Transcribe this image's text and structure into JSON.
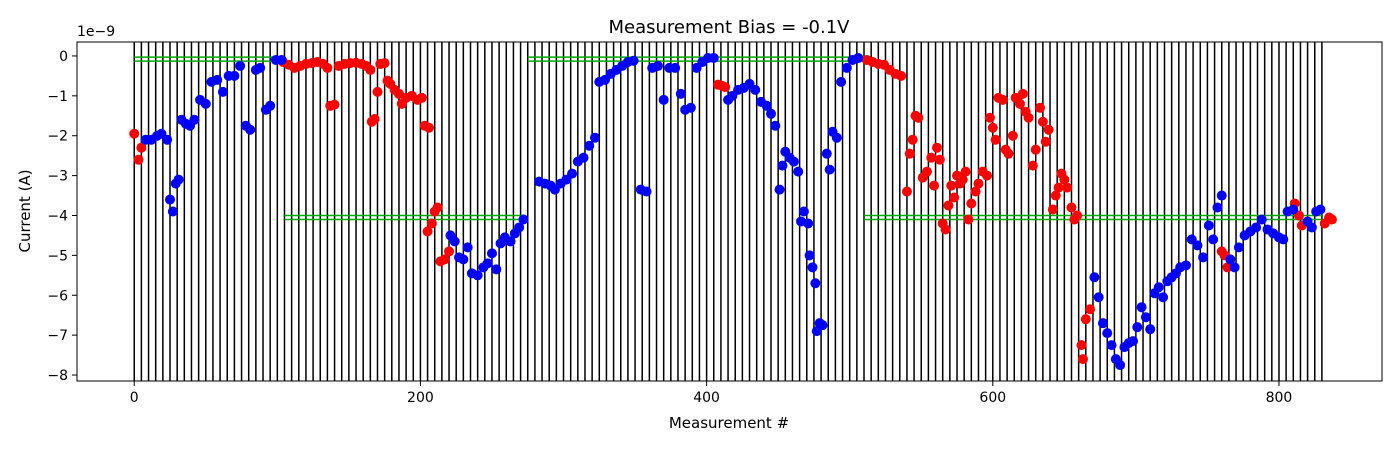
{
  "chart_data": {
    "type": "scatter",
    "title": "Measurement Bias = -0.1V",
    "xlabel": "Measurement #",
    "ylabel": "Current (A)",
    "y_offset_text": "1e−9",
    "xlim": [
      -40,
      872
    ],
    "ylim": [
      -8.15,
      0.35
    ],
    "x_ticks": [
      0,
      200,
      400,
      600,
      800
    ],
    "x_tick_labels": [
      "0",
      "200",
      "400",
      "600",
      "800"
    ],
    "y_ticks": [
      0,
      -1,
      -2,
      -3,
      -4,
      -5,
      -6,
      -7,
      -8
    ],
    "y_tick_labels": [
      "0",
      "−1",
      "−2",
      "−3",
      "−4",
      "−5",
      "−6",
      "−7",
      "−8"
    ],
    "colors": {
      "red": "#ff0000",
      "blue": "#0000ff",
      "vline": "#000000",
      "hline": "#00aa00"
    },
    "vertical_lines": {
      "start": 0,
      "end": 830,
      "spacing": 5
    },
    "horizontal_segments": [
      {
        "x": [
          0,
          105
        ],
        "y": -0.08
      },
      {
        "x": [
          105,
          272
        ],
        "y": -4.05
      },
      {
        "x": [
          275,
          510
        ],
        "y": -0.08
      },
      {
        "x": [
          510,
          830
        ],
        "y": -4.05
      }
    ],
    "series": [
      {
        "color": "red",
        "points": [
          [
            0,
            -1.95
          ],
          [
            3,
            -2.6
          ],
          [
            5,
            -2.3
          ],
          [
            104,
            -0.15
          ],
          [
            108,
            -0.22
          ],
          [
            112,
            -0.3
          ],
          [
            116,
            -0.25
          ],
          [
            120,
            -0.2
          ],
          [
            124,
            -0.18
          ],
          [
            128,
            -0.15
          ],
          [
            132,
            -0.2
          ],
          [
            135,
            -0.3
          ],
          [
            137,
            -1.25
          ],
          [
            140,
            -1.22
          ],
          [
            143,
            -0.25
          ],
          [
            147,
            -0.2
          ],
          [
            151,
            -0.18
          ],
          [
            155,
            -0.17
          ],
          [
            159,
            -0.2
          ],
          [
            162,
            -0.25
          ],
          [
            165,
            -0.35
          ],
          [
            166,
            -1.65
          ],
          [
            168,
            -1.58
          ],
          [
            170,
            -0.9
          ],
          [
            172,
            -0.2
          ],
          [
            175,
            -0.18
          ],
          [
            177,
            -0.62
          ],
          [
            179,
            -0.7
          ],
          [
            182,
            -0.85
          ],
          [
            185,
            -0.95
          ],
          [
            187,
            -1.2
          ],
          [
            190,
            -1.05
          ],
          [
            194,
            -1.0
          ],
          [
            198,
            -1.1
          ],
          [
            201,
            -1.05
          ],
          [
            203,
            -1.75
          ],
          [
            206,
            -1.8
          ],
          [
            205,
            -4.4
          ],
          [
            208,
            -4.2
          ],
          [
            210,
            -3.9
          ],
          [
            212,
            -3.8
          ],
          [
            214,
            -5.15
          ],
          [
            217,
            -5.1
          ],
          [
            220,
            -4.9
          ],
          [
            411,
            -0.75
          ],
          [
            413,
            -0.78
          ],
          [
            408,
            -0.72
          ],
          [
            512,
            -0.1
          ],
          [
            516,
            -0.15
          ],
          [
            520,
            -0.2
          ],
          [
            524,
            -0.22
          ],
          [
            528,
            -0.35
          ],
          [
            532,
            -0.45
          ],
          [
            536,
            -0.5
          ],
          [
            540,
            -3.4
          ],
          [
            542,
            -2.45
          ],
          [
            544,
            -2.1
          ],
          [
            546,
            -1.5
          ],
          [
            548,
            -1.55
          ],
          [
            551,
            -3.05
          ],
          [
            554,
            -2.9
          ],
          [
            557,
            -2.55
          ],
          [
            559,
            -3.25
          ],
          [
            561,
            -2.3
          ],
          [
            563,
            -2.6
          ],
          [
            565,
            -4.2
          ],
          [
            567,
            -4.35
          ],
          [
            569,
            -3.75
          ],
          [
            571,
            -3.25
          ],
          [
            573,
            -3.55
          ],
          [
            575,
            -3.0
          ],
          [
            577,
            -3.2
          ],
          [
            579,
            -3.1
          ],
          [
            581,
            -2.9
          ],
          [
            583,
            -4.1
          ],
          [
            585,
            -3.7
          ],
          [
            588,
            -3.4
          ],
          [
            590,
            -3.2
          ],
          [
            593,
            -2.9
          ],
          [
            596,
            -3.0
          ],
          [
            598,
            -1.55
          ],
          [
            600,
            -1.8
          ],
          [
            602,
            -2.1
          ],
          [
            604,
            -1.05
          ],
          [
            607,
            -1.1
          ],
          [
            609,
            -2.35
          ],
          [
            611,
            -2.45
          ],
          [
            614,
            -2.0
          ],
          [
            616,
            -1.05
          ],
          [
            619,
            -1.2
          ],
          [
            621,
            -0.95
          ],
          [
            623,
            -1.4
          ],
          [
            625,
            -1.55
          ],
          [
            628,
            -2.75
          ],
          [
            630,
            -2.35
          ],
          [
            633,
            -1.3
          ],
          [
            635,
            -1.65
          ],
          [
            637,
            -2.15
          ],
          [
            639,
            -1.85
          ],
          [
            642,
            -3.85
          ],
          [
            644,
            -3.5
          ],
          [
            646,
            -3.3
          ],
          [
            648,
            -2.95
          ],
          [
            650,
            -3.1
          ],
          [
            652,
            -3.3
          ],
          [
            655,
            -3.8
          ],
          [
            657,
            -4.1
          ],
          [
            659,
            -4.0
          ],
          [
            662,
            -7.25
          ],
          [
            663,
            -7.6
          ],
          [
            665,
            -6.6
          ],
          [
            668,
            -6.35
          ],
          [
            760,
            -4.9
          ],
          [
            762,
            -5.0
          ],
          [
            764,
            -5.3
          ],
          [
            811,
            -3.7
          ],
          [
            814,
            -4.0
          ],
          [
            816,
            -4.25
          ],
          [
            832,
            -4.2
          ],
          [
            835,
            -4.05
          ],
          [
            837,
            -4.1
          ]
        ]
      },
      {
        "color": "blue",
        "points": [
          [
            8,
            -2.1
          ],
          [
            12,
            -2.1
          ],
          [
            16,
            -2.0
          ],
          [
            19,
            -1.95
          ],
          [
            23,
            -2.1
          ],
          [
            25,
            -3.6
          ],
          [
            27,
            -3.9
          ],
          [
            29,
            -3.2
          ],
          [
            31,
            -3.1
          ],
          [
            33,
            -1.6
          ],
          [
            36,
            -1.7
          ],
          [
            39,
            -1.75
          ],
          [
            42,
            -1.6
          ],
          [
            46,
            -1.1
          ],
          [
            50,
            -1.2
          ],
          [
            54,
            -0.65
          ],
          [
            58,
            -0.6
          ],
          [
            62,
            -0.9
          ],
          [
            66,
            -0.5
          ],
          [
            70,
            -0.5
          ],
          [
            74,
            -0.25
          ],
          [
            78,
            -1.75
          ],
          [
            81,
            -1.85
          ],
          [
            85,
            -0.35
          ],
          [
            88,
            -0.3
          ],
          [
            92,
            -1.35
          ],
          [
            95,
            -1.25
          ],
          [
            99,
            -0.1
          ],
          [
            103,
            -0.1
          ],
          [
            221,
            -4.5
          ],
          [
            224,
            -4.65
          ],
          [
            227,
            -5.05
          ],
          [
            230,
            -5.1
          ],
          [
            233,
            -4.8
          ],
          [
            236,
            -5.45
          ],
          [
            240,
            -5.5
          ],
          [
            244,
            -5.3
          ],
          [
            247,
            -5.2
          ],
          [
            250,
            -4.95
          ],
          [
            253,
            -5.35
          ],
          [
            256,
            -4.7
          ],
          [
            259,
            -4.55
          ],
          [
            263,
            -4.65
          ],
          [
            266,
            -4.45
          ],
          [
            269,
            -4.3
          ],
          [
            272,
            -4.1
          ],
          [
            283,
            -3.15
          ],
          [
            287,
            -3.2
          ],
          [
            291,
            -3.25
          ],
          [
            294,
            -3.35
          ],
          [
            298,
            -3.2
          ],
          [
            302,
            -3.1
          ],
          [
            306,
            -2.95
          ],
          [
            310,
            -2.65
          ],
          [
            314,
            -2.55
          ],
          [
            318,
            -2.25
          ],
          [
            322,
            -2.05
          ],
          [
            325,
            -0.65
          ],
          [
            329,
            -0.6
          ],
          [
            333,
            -0.45
          ],
          [
            337,
            -0.35
          ],
          [
            341,
            -0.25
          ],
          [
            345,
            -0.15
          ],
          [
            349,
            -0.12
          ],
          [
            354,
            -3.35
          ],
          [
            358,
            -3.4
          ],
          [
            362,
            -0.3
          ],
          [
            366,
            -0.25
          ],
          [
            370,
            -1.1
          ],
          [
            374,
            -0.3
          ],
          [
            378,
            -0.3
          ],
          [
            382,
            -0.95
          ],
          [
            385,
            -1.35
          ],
          [
            389,
            -1.3
          ],
          [
            393,
            -0.3
          ],
          [
            397,
            -0.15
          ],
          [
            401,
            -0.05
          ],
          [
            405,
            -0.05
          ],
          [
            415,
            -1.1
          ],
          [
            418,
            -1.0
          ],
          [
            422,
            -0.85
          ],
          [
            426,
            -0.8
          ],
          [
            430,
            -0.7
          ],
          [
            434,
            -0.85
          ],
          [
            438,
            -1.15
          ],
          [
            442,
            -1.25
          ],
          [
            445,
            -1.45
          ],
          [
            448,
            -1.75
          ],
          [
            451,
            -3.35
          ],
          [
            453,
            -2.75
          ],
          [
            455,
            -2.4
          ],
          [
            458,
            -2.55
          ],
          [
            461,
            -2.65
          ],
          [
            464,
            -2.9
          ],
          [
            466,
            -4.15
          ],
          [
            468,
            -3.9
          ],
          [
            471,
            -4.2
          ],
          [
            472,
            -5.0
          ],
          [
            474,
            -5.3
          ],
          [
            476,
            -5.7
          ],
          [
            477,
            -6.9
          ],
          [
            479,
            -6.7
          ],
          [
            481,
            -6.75
          ],
          [
            484,
            -2.45
          ],
          [
            486,
            -2.85
          ],
          [
            488,
            -1.9
          ],
          [
            491,
            -2.05
          ],
          [
            494,
            -0.65
          ],
          [
            498,
            -0.3
          ],
          [
            502,
            -0.1
          ],
          [
            506,
            -0.05
          ],
          [
            671,
            -5.55
          ],
          [
            674,
            -6.05
          ],
          [
            677,
            -6.7
          ],
          [
            680,
            -6.95
          ],
          [
            683,
            -7.25
          ],
          [
            686,
            -7.6
          ],
          [
            689,
            -7.75
          ],
          [
            692,
            -7.3
          ],
          [
            695,
            -7.2
          ],
          [
            698,
            -7.15
          ],
          [
            701,
            -6.8
          ],
          [
            704,
            -6.3
          ],
          [
            707,
            -6.55
          ],
          [
            710,
            -6.85
          ],
          [
            713,
            -5.95
          ],
          [
            716,
            -5.8
          ],
          [
            719,
            -6.05
          ],
          [
            722,
            -5.65
          ],
          [
            725,
            -5.55
          ],
          [
            728,
            -5.45
          ],
          [
            731,
            -5.3
          ],
          [
            735,
            -5.25
          ],
          [
            739,
            -4.6
          ],
          [
            743,
            -4.75
          ],
          [
            747,
            -5.05
          ],
          [
            751,
            -4.25
          ],
          [
            754,
            -4.6
          ],
          [
            757,
            -3.8
          ],
          [
            760,
            -3.5
          ],
          [
            766,
            -5.1
          ],
          [
            769,
            -5.3
          ],
          [
            772,
            -4.8
          ],
          [
            776,
            -4.5
          ],
          [
            780,
            -4.4
          ],
          [
            784,
            -4.3
          ],
          [
            788,
            -4.1
          ],
          [
            792,
            -4.35
          ],
          [
            796,
            -4.45
          ],
          [
            800,
            -4.55
          ],
          [
            803,
            -4.6
          ],
          [
            806,
            -3.9
          ],
          [
            810,
            -3.85
          ],
          [
            820,
            -4.15
          ],
          [
            823,
            -4.3
          ],
          [
            826,
            -3.9
          ],
          [
            829,
            -3.85
          ]
        ]
      }
    ]
  }
}
